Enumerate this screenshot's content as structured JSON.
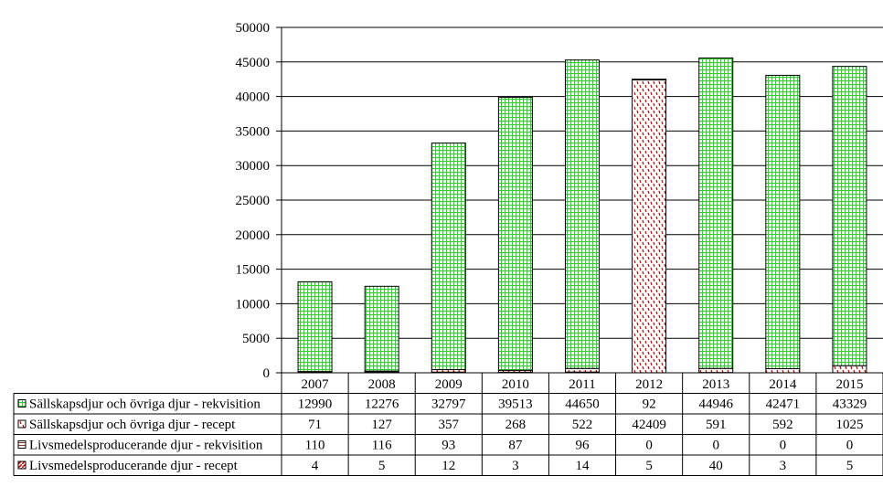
{
  "chart_data": {
    "type": "bar",
    "stacked": true,
    "title": "",
    "xlabel": "",
    "ylabel": "",
    "categories": [
      "2007",
      "2008",
      "2009",
      "2010",
      "2011",
      "2012",
      "2013",
      "2014",
      "2015"
    ],
    "ylim": [
      0,
      50000
    ],
    "yticks": [
      "0",
      "5000",
      "10000",
      "15000",
      "20000",
      "25000",
      "30000",
      "35000",
      "40000",
      "45000",
      "50000"
    ],
    "grid": true,
    "legend": "data table below chart",
    "series": [
      {
        "name": "Livsmedelsproducerande djur - recept",
        "color": "#cc0000",
        "pattern": "diagonal-stripes",
        "values": [
          4,
          5,
          12,
          3,
          14,
          5,
          40,
          3,
          5
        ]
      },
      {
        "name": "Livsmedelsproducerande djur - rekvisition",
        "color": "#8b3a3a",
        "pattern": "horizontal-lines",
        "values": [
          110,
          116,
          93,
          87,
          96,
          0,
          0,
          0,
          0
        ]
      },
      {
        "name": "Sällskapsdjur och övriga djur - recept",
        "color": "#cc0000",
        "pattern": "dashed-dots",
        "values": [
          71,
          127,
          357,
          268,
          522,
          42409,
          591,
          592,
          1025
        ]
      },
      {
        "name": "Sällskapsdjur och övriga djur - rekvisition",
        "color": "#33cc33",
        "pattern": "grid",
        "values": [
          12990,
          12276,
          32797,
          39513,
          44650,
          92,
          44946,
          42471,
          43329
        ]
      }
    ],
    "table_row_order": [
      3,
      2,
      1,
      0
    ]
  }
}
